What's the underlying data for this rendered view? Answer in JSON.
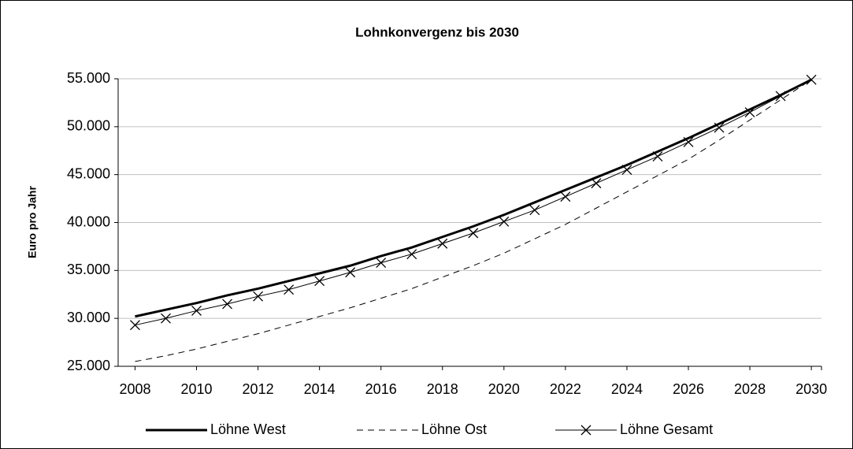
{
  "chart_data": {
    "type": "line",
    "title": "Lohnkonvergenz bis 2030",
    "y_label": "Euro pro Jahr",
    "x": [
      2008,
      2009,
      2010,
      2011,
      2012,
      2013,
      2014,
      2015,
      2016,
      2017,
      2018,
      2019,
      2020,
      2021,
      2022,
      2023,
      2024,
      2025,
      2026,
      2027,
      2028,
      2029,
      2030
    ],
    "series": [
      {
        "name": "Löhne West",
        "color": "#000000",
        "width": 3,
        "dashed": false,
        "marker": null,
        "values": [
          30200,
          30900,
          31600,
          32400,
          33100,
          33900,
          34700,
          35500,
          36500,
          37400,
          38500,
          39600,
          40800,
          42100,
          43400,
          44700,
          46000,
          47400,
          48800,
          50300,
          51800,
          53300,
          54900
        ]
      },
      {
        "name": "Löhne Ost",
        "color": "#000000",
        "width": 1,
        "dashed": true,
        "marker": null,
        "values": [
          25500,
          26100,
          26800,
          27600,
          28400,
          29300,
          30200,
          31100,
          32100,
          33100,
          34300,
          35500,
          36800,
          38300,
          39800,
          41500,
          43200,
          44900,
          46600,
          48600,
          50700,
          52800,
          54900
        ]
      },
      {
        "name": "Löhne Gesamt",
        "color": "#000000",
        "width": 1,
        "dashed": false,
        "marker": "x",
        "values": [
          29300,
          30000,
          30800,
          31500,
          32300,
          33000,
          33900,
          34800,
          35800,
          36700,
          37800,
          38900,
          40100,
          41300,
          42700,
          44100,
          45500,
          46900,
          48400,
          49900,
          51500,
          53200,
          54900
        ]
      }
    ],
    "xlim": [
      2007.45,
      2030.33
    ],
    "xticks": [
      2008,
      2010,
      2012,
      2014,
      2016,
      2018,
      2020,
      2022,
      2024,
      2026,
      2028,
      2030
    ],
    "ylim": [
      25000,
      55000
    ],
    "yticks": [
      {
        "value": 25000,
        "label": "25.000"
      },
      {
        "value": 30000,
        "label": "30.000"
      },
      {
        "value": 35000,
        "label": "35.000"
      },
      {
        "value": 40000,
        "label": "40.000"
      },
      {
        "value": 45000,
        "label": "45.000"
      },
      {
        "value": 50000,
        "label": "50.000"
      },
      {
        "value": 55000,
        "label": "55.000"
      }
    ],
    "grid": true,
    "legend": "bottom"
  }
}
